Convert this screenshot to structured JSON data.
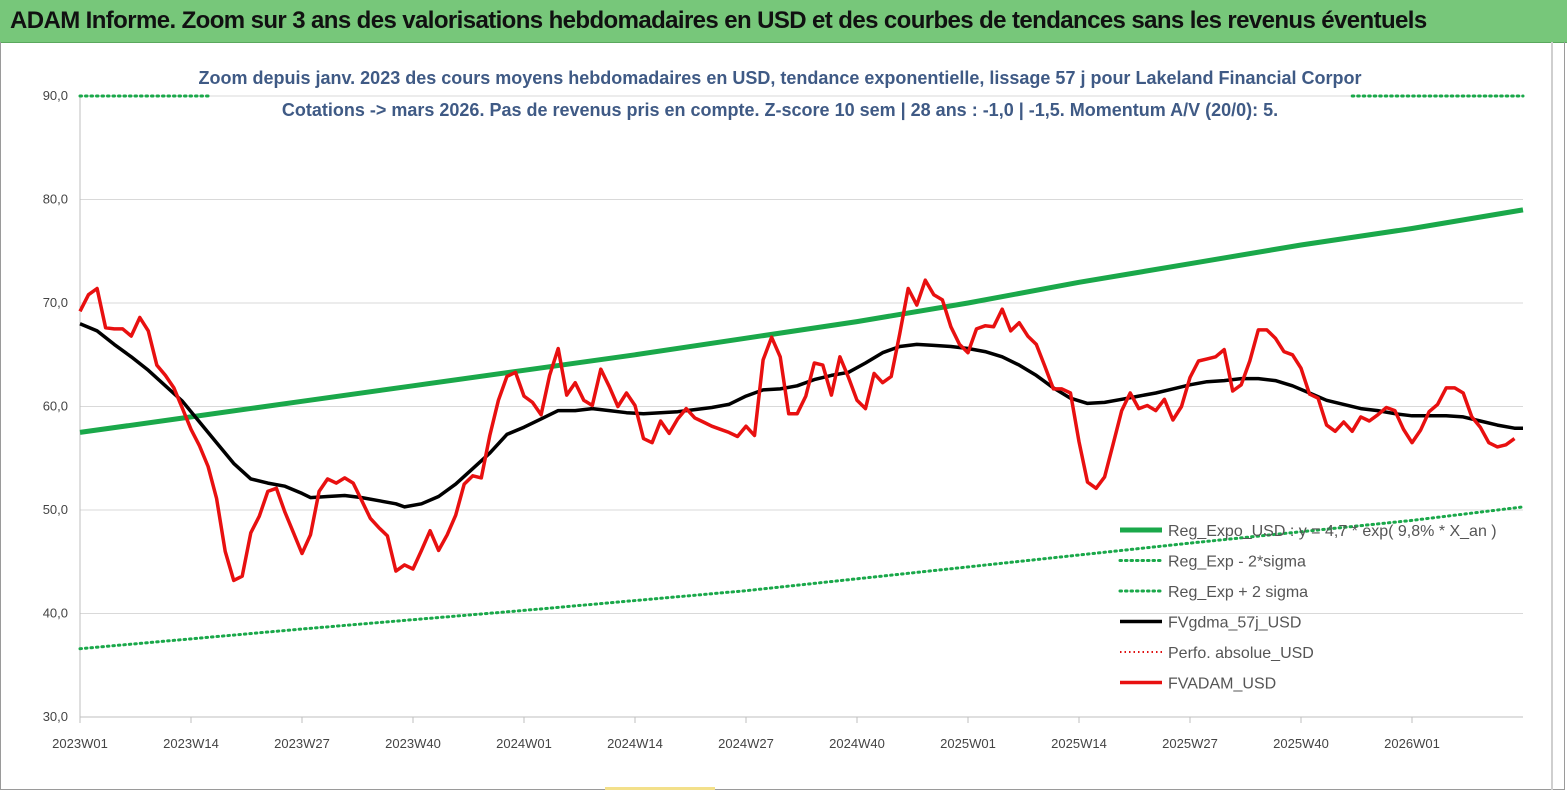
{
  "banner": {
    "title": "ADAM Informe. Zoom sur 3 ans des valorisations hebdomadaires en USD et des courbes de tendances sans les revenus éventuels"
  },
  "colors": {
    "banner_bg": "#77c77a",
    "title_text": "#3f5a85",
    "reg_expo": "#1aa84a",
    "reg_sigma": "#1aa84a",
    "fvgdma": "#000000",
    "perfo": "#e01010",
    "fvadam": "#e81010"
  },
  "chart_data": {
    "type": "line",
    "title": "Zoom depuis janv. 2023 des cours moyens hebdomadaires en USD, tendance exponentielle, lissage 57 j pour Lakeland Financial Corpor",
    "subtitle": "Cotations -> mars 2026. Pas de revenus pris en  compte. Z-score 10 sem  | 28 ans : -1,0 | -1,5. Momentum A/V (20/0): 5.",
    "xlabel": "",
    "ylabel": "",
    "ylim": [
      30,
      90
    ],
    "yticks": [
      "30,0",
      "40,0",
      "50,0",
      "60,0",
      "70,0",
      "80,0",
      "90,0"
    ],
    "x_week_range": [
      0,
      169
    ],
    "x_ticks": [
      {
        "week": 0,
        "label": "2023W01"
      },
      {
        "week": 13,
        "label": "2023W14"
      },
      {
        "week": 26,
        "label": "2023W27"
      },
      {
        "week": 39,
        "label": "2023W40"
      },
      {
        "week": 52,
        "label": "2024W01"
      },
      {
        "week": 65,
        "label": "2024W14"
      },
      {
        "week": 78,
        "label": "2024W27"
      },
      {
        "week": 91,
        "label": "2024W40"
      },
      {
        "week": 104,
        "label": "2025W01"
      },
      {
        "week": 117,
        "label": "2025W14"
      },
      {
        "week": 130,
        "label": "2025W27"
      },
      {
        "week": 143,
        "label": "2025W40"
      },
      {
        "week": 156,
        "label": "2026W01"
      }
    ],
    "legend_position": "bottom-right",
    "grid": "horizontal",
    "series": [
      {
        "name": "Reg_Expo_USD : y = 4,7 * exp( 9,8% *  X_an )",
        "style": "solid-thick",
        "color": "#1aa84a",
        "points": [
          [
            0,
            57.5
          ],
          [
            13,
            59
          ],
          [
            26,
            60.5
          ],
          [
            39,
            62
          ],
          [
            52,
            63.5
          ],
          [
            65,
            65
          ],
          [
            78,
            66.6
          ],
          [
            91,
            68.2
          ],
          [
            104,
            70
          ],
          [
            117,
            72
          ],
          [
            130,
            73.8
          ],
          [
            143,
            75.6
          ],
          [
            156,
            77.2
          ],
          [
            169,
            79
          ]
        ]
      },
      {
        "name": "Reg_Exp - 2*sigma",
        "style": "dotted",
        "color": "#1aa84a",
        "points": [
          [
            0,
            36.6
          ],
          [
            26,
            38.5
          ],
          [
            52,
            40.3
          ],
          [
            78,
            42.2
          ],
          [
            104,
            44.5
          ],
          [
            130,
            46.8
          ],
          [
            156,
            49
          ],
          [
            169,
            50.3
          ]
        ]
      },
      {
        "name": "Reg_Exp + 2 sigma",
        "style": "dotted",
        "color": "#1aa84a",
        "points": [
          [
            0,
            90
          ],
          [
            15,
            90
          ],
          [
            149,
            90
          ],
          [
            169,
            90
          ]
        ]
      },
      {
        "name": "FVgdma_57j_USD",
        "style": "solid",
        "color": "#000000",
        "points": [
          [
            0,
            68
          ],
          [
            2,
            67.3
          ],
          [
            4,
            66
          ],
          [
            6,
            64.8
          ],
          [
            8,
            63.5
          ],
          [
            10,
            62
          ],
          [
            12,
            60.5
          ],
          [
            14,
            58.5
          ],
          [
            16,
            56.5
          ],
          [
            18,
            54.5
          ],
          [
            20,
            53
          ],
          [
            22,
            52.6
          ],
          [
            24,
            52.3
          ],
          [
            26,
            51.6
          ],
          [
            27,
            51.2
          ],
          [
            29,
            51.3
          ],
          [
            31,
            51.4
          ],
          [
            33,
            51.2
          ],
          [
            35,
            50.9
          ],
          [
            37,
            50.6
          ],
          [
            38,
            50.3
          ],
          [
            40,
            50.6
          ],
          [
            42,
            51.3
          ],
          [
            44,
            52.5
          ],
          [
            46,
            54
          ],
          [
            48,
            55.5
          ],
          [
            50,
            57.3
          ],
          [
            52,
            58
          ],
          [
            54,
            58.8
          ],
          [
            56,
            59.6
          ],
          [
            58,
            59.6
          ],
          [
            60,
            59.8
          ],
          [
            62,
            59.6
          ],
          [
            64,
            59.4
          ],
          [
            66,
            59.3
          ],
          [
            68,
            59.4
          ],
          [
            70,
            59.5
          ],
          [
            72,
            59.7
          ],
          [
            74,
            59.9
          ],
          [
            76,
            60.2
          ],
          [
            78,
            61
          ],
          [
            80,
            61.6
          ],
          [
            82,
            61.7
          ],
          [
            84,
            62
          ],
          [
            86,
            62.6
          ],
          [
            88,
            63
          ],
          [
            90,
            63.3
          ],
          [
            92,
            64.2
          ],
          [
            94,
            65.2
          ],
          [
            96,
            65.8
          ],
          [
            98,
            66
          ],
          [
            100,
            65.9
          ],
          [
            102,
            65.8
          ],
          [
            104,
            65.6
          ],
          [
            106,
            65.3
          ],
          [
            108,
            64.8
          ],
          [
            110,
            64
          ],
          [
            112,
            63
          ],
          [
            114,
            61.8
          ],
          [
            116,
            60.8
          ],
          [
            118,
            60.3
          ],
          [
            120,
            60.4
          ],
          [
            122,
            60.7
          ],
          [
            124,
            61
          ],
          [
            126,
            61.3
          ],
          [
            128,
            61.7
          ],
          [
            130,
            62.1
          ],
          [
            132,
            62.4
          ],
          [
            134,
            62.5
          ],
          [
            136,
            62.7
          ],
          [
            138,
            62.7
          ],
          [
            140,
            62.5
          ],
          [
            142,
            62
          ],
          [
            144,
            61.3
          ],
          [
            146,
            60.6
          ],
          [
            148,
            60.2
          ],
          [
            150,
            59.8
          ],
          [
            152,
            59.6
          ],
          [
            154,
            59.3
          ],
          [
            156,
            59.1
          ],
          [
            158,
            59.1
          ],
          [
            160,
            59.1
          ],
          [
            162,
            59
          ],
          [
            164,
            58.6
          ],
          [
            166,
            58.2
          ],
          [
            168,
            57.9
          ],
          [
            169,
            57.9
          ]
        ]
      },
      {
        "name": "Perfo. absolue_USD",
        "style": "dotted-thin",
        "color": "#e01010",
        "points": []
      },
      {
        "name": "FVADAM_USD",
        "style": "solid",
        "color": "#e81010",
        "points": [
          [
            0,
            69.2
          ],
          [
            1,
            70.8
          ],
          [
            2,
            71.4
          ],
          [
            3,
            67.6
          ],
          [
            4,
            67.5
          ],
          [
            5,
            67.5
          ],
          [
            6,
            66.8
          ],
          [
            7,
            68.6
          ],
          [
            8,
            67.3
          ],
          [
            9,
            64
          ],
          [
            10,
            63
          ],
          [
            11,
            61.8
          ],
          [
            12,
            59.8
          ],
          [
            13,
            57.8
          ],
          [
            14,
            56.2
          ],
          [
            15,
            54.2
          ],
          [
            16,
            51.1
          ],
          [
            17,
            46
          ],
          [
            18,
            43.2
          ],
          [
            19,
            43.6
          ],
          [
            20,
            47.8
          ],
          [
            21,
            49.4
          ],
          [
            22,
            51.8
          ],
          [
            23,
            52.1
          ],
          [
            24,
            49.8
          ],
          [
            25,
            47.8
          ],
          [
            26,
            45.8
          ],
          [
            27,
            47.6
          ],
          [
            28,
            51.8
          ],
          [
            29,
            53
          ],
          [
            30,
            52.6
          ],
          [
            31,
            53.1
          ],
          [
            32,
            52.6
          ],
          [
            33,
            50.9
          ],
          [
            34,
            49.2
          ],
          [
            35,
            48.3
          ],
          [
            36,
            47.5
          ],
          [
            37,
            44.1
          ],
          [
            38,
            44.7
          ],
          [
            39,
            44.3
          ],
          [
            40,
            46.1
          ],
          [
            41,
            48
          ],
          [
            42,
            46.1
          ],
          [
            43,
            47.6
          ],
          [
            44,
            49.5
          ],
          [
            45,
            52.5
          ],
          [
            46,
            53.3
          ],
          [
            47,
            53.1
          ],
          [
            48,
            57.2
          ],
          [
            49,
            60.6
          ],
          [
            50,
            62.9
          ],
          [
            51,
            63.3
          ],
          [
            52,
            61
          ],
          [
            53,
            60.4
          ],
          [
            54,
            59.2
          ],
          [
            55,
            63
          ],
          [
            56,
            65.6
          ],
          [
            57,
            61.1
          ],
          [
            58,
            62.3
          ],
          [
            59,
            60.6
          ],
          [
            60,
            60.1
          ],
          [
            61,
            63.6
          ],
          [
            62,
            61.9
          ],
          [
            63,
            60
          ],
          [
            64,
            61.3
          ],
          [
            65,
            60.1
          ],
          [
            66,
            56.9
          ],
          [
            67,
            56.5
          ],
          [
            68,
            58.6
          ],
          [
            69,
            57.4
          ],
          [
            70,
            58.8
          ],
          [
            71,
            59.8
          ],
          [
            72,
            58.9
          ],
          [
            73,
            58.5
          ],
          [
            74,
            58.1
          ],
          [
            75,
            57.8
          ],
          [
            76,
            57.5
          ],
          [
            77,
            57.1
          ],
          [
            78,
            58.1
          ],
          [
            79,
            57.2
          ],
          [
            80,
            64.5
          ],
          [
            81,
            66.7
          ],
          [
            82,
            64.8
          ],
          [
            83,
            59.3
          ],
          [
            84,
            59.3
          ],
          [
            85,
            61
          ],
          [
            86,
            64.2
          ],
          [
            87,
            64
          ],
          [
            88,
            61.1
          ],
          [
            89,
            64.8
          ],
          [
            90,
            62.8
          ],
          [
            91,
            60.6
          ],
          [
            92,
            59.8
          ],
          [
            93,
            63.2
          ],
          [
            94,
            62.3
          ],
          [
            95,
            62.9
          ],
          [
            96,
            67
          ],
          [
            97,
            71.4
          ],
          [
            98,
            69.8
          ],
          [
            99,
            72.2
          ],
          [
            100,
            70.8
          ],
          [
            101,
            70.3
          ],
          [
            102,
            67.7
          ],
          [
            103,
            66
          ],
          [
            104,
            65.2
          ],
          [
            105,
            67.5
          ],
          [
            106,
            67.8
          ],
          [
            107,
            67.7
          ],
          [
            108,
            69.4
          ],
          [
            109,
            67.3
          ],
          [
            110,
            68.1
          ],
          [
            111,
            66.8
          ],
          [
            112,
            66
          ],
          [
            113,
            63.9
          ],
          [
            114,
            61.7
          ],
          [
            115,
            61.7
          ],
          [
            116,
            61.3
          ],
          [
            117,
            56.6
          ],
          [
            118,
            52.7
          ],
          [
            119,
            52.1
          ],
          [
            120,
            53.2
          ],
          [
            121,
            56.4
          ],
          [
            122,
            59.6
          ],
          [
            123,
            61.3
          ],
          [
            124,
            59.8
          ],
          [
            125,
            60.1
          ],
          [
            126,
            59.6
          ],
          [
            127,
            60.7
          ],
          [
            128,
            58.7
          ],
          [
            129,
            60
          ],
          [
            130,
            62.8
          ],
          [
            131,
            64.4
          ],
          [
            132,
            64.6
          ],
          [
            133,
            64.8
          ],
          [
            134,
            65.5
          ],
          [
            135,
            61.5
          ],
          [
            136,
            62.1
          ],
          [
            137,
            64.4
          ],
          [
            138,
            67.4
          ],
          [
            139,
            67.4
          ],
          [
            140,
            66.6
          ],
          [
            141,
            65.3
          ],
          [
            142,
            65
          ],
          [
            143,
            63.7
          ],
          [
            144,
            61.2
          ],
          [
            145,
            60.8
          ],
          [
            146,
            58.2
          ],
          [
            147,
            57.6
          ],
          [
            148,
            58.5
          ],
          [
            149,
            57.6
          ],
          [
            150,
            59
          ],
          [
            151,
            58.6
          ],
          [
            152,
            59.2
          ],
          [
            153,
            59.9
          ],
          [
            154,
            59.6
          ],
          [
            155,
            57.8
          ],
          [
            156,
            56.5
          ],
          [
            157,
            57.7
          ],
          [
            158,
            59.5
          ],
          [
            159,
            60.2
          ],
          [
            160,
            61.8
          ],
          [
            161,
            61.8
          ],
          [
            162,
            61.3
          ],
          [
            163,
            59
          ],
          [
            164,
            58
          ],
          [
            165,
            56.5
          ],
          [
            166,
            56.1
          ],
          [
            167,
            56.3
          ],
          [
            168,
            56.9
          ]
        ]
      }
    ]
  }
}
